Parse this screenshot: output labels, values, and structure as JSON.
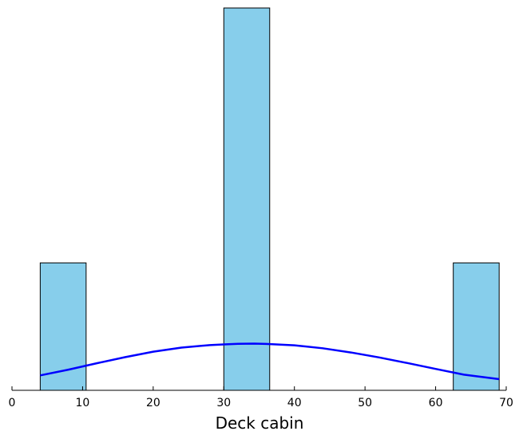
{
  "chart_data": {
    "type": "bar",
    "subtype": "histogram-with-density-curve",
    "title": "",
    "xlabel": "Deck cabin",
    "ylabel": "",
    "xlim": [
      0,
      70
    ],
    "xticks": [
      0,
      10,
      20,
      30,
      40,
      50,
      60,
      70
    ],
    "y_axis_visible": false,
    "grid": false,
    "legend": "none",
    "bins": [
      {
        "x0": 4,
        "x1": 10.5,
        "count": 1
      },
      {
        "x0": 30,
        "x1": 36.5,
        "count": 3
      },
      {
        "x0": 62.5,
        "x1": 69,
        "count": 1
      }
    ],
    "ylim": [
      0,
      3
    ],
    "density_curve": {
      "x": [
        4,
        8,
        12,
        16,
        20,
        24,
        28,
        30,
        32,
        34.3,
        36,
        40,
        44,
        48,
        52,
        56,
        60,
        64,
        69
      ],
      "y": [
        0.117,
        0.162,
        0.212,
        0.26,
        0.303,
        0.335,
        0.355,
        0.36,
        0.365,
        0.366,
        0.364,
        0.353,
        0.33,
        0.297,
        0.258,
        0.214,
        0.168,
        0.123,
        0.088
      ]
    },
    "colors": {
      "bar_fill": "#87ceeb",
      "bar_edge": "#000000",
      "curve": "#0000ff",
      "axis": "#000000"
    }
  }
}
